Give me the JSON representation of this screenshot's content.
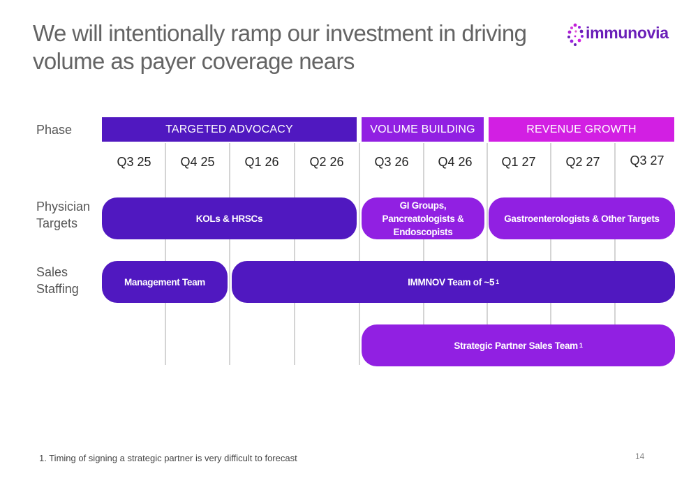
{
  "title": "We will intentionally ramp our investment in driving volume as payer coverage nears",
  "logo": {
    "name": "immunovia"
  },
  "colors": {
    "dark_purple": "#5018c0",
    "mid_purple": "#9120e2",
    "magenta": "#d21fe3"
  },
  "row_labels": {
    "phase": "Phase",
    "physician_targets": "Physician Targets",
    "sales_staffing": "Sales Staffing"
  },
  "phases": [
    {
      "label": "TARGETED ADVOCACY"
    },
    {
      "label": "VOLUME BUILDING"
    },
    {
      "label": "REVENUE GROWTH"
    }
  ],
  "quarters": [
    "Q3 25",
    "Q4 25",
    "Q1 26",
    "Q2 26",
    "Q3 26",
    "Q4 26",
    "Q1 27",
    "Q2 27",
    "Q3 27"
  ],
  "physician_targets": [
    {
      "label": "KOLs & HRSCs"
    },
    {
      "label": "GI Groups, Pancreatologists & Endoscopists"
    },
    {
      "label": "Gastroenterologists & Other Targets"
    }
  ],
  "sales_staffing": [
    {
      "label": "Management Team"
    },
    {
      "label": "IMMNOV Team of ~5",
      "footnote_ref": "1"
    },
    {
      "label": "Strategic Partner Sales Team",
      "footnote_ref": "1"
    }
  ],
  "footnote": "1.  Timing of signing a strategic partner is very difficult to forecast",
  "page_number": "14"
}
